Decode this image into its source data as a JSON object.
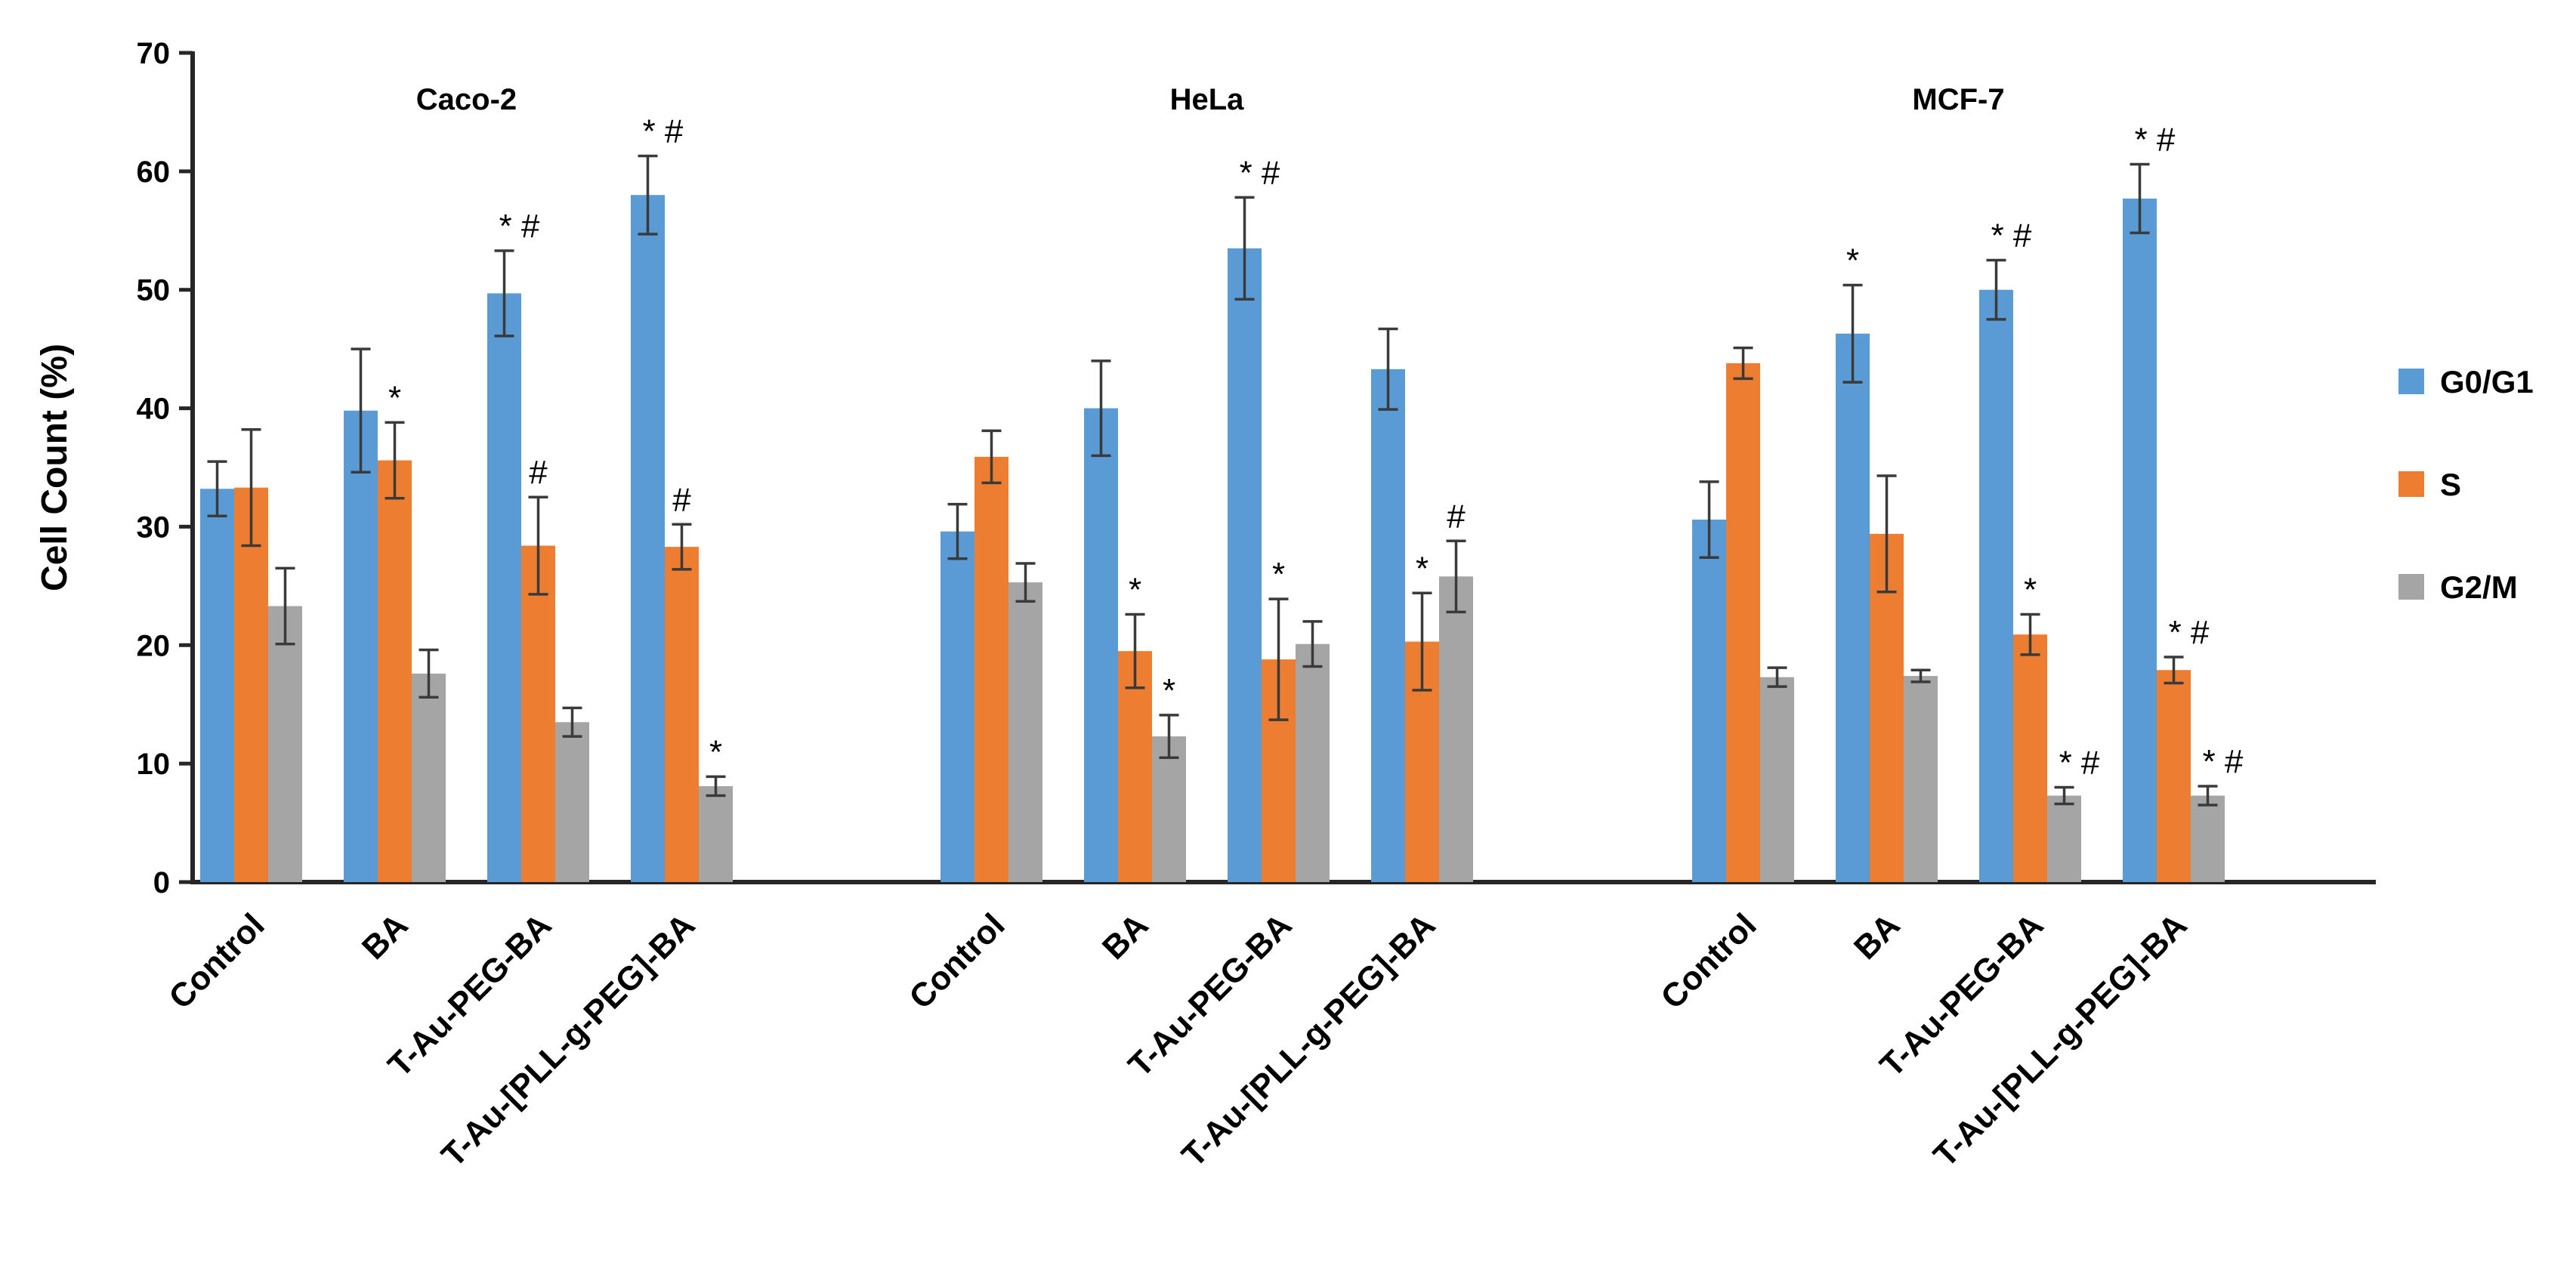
{
  "chart_data": {
    "type": "bar",
    "ylabel": "Cell Count (%)",
    "ylim": [
      0,
      70
    ],
    "yticks": [
      0,
      10,
      20,
      30,
      40,
      50,
      60,
      70
    ],
    "grid": false,
    "legend": {
      "position": "right",
      "entries": [
        {
          "name": "G0/G1",
          "color": "#5B9BD5"
        },
        {
          "name": "S",
          "color": "#ED7D31"
        },
        {
          "name": "G2/M",
          "color": "#A5A5A5"
        }
      ]
    },
    "categories": [
      "Control",
      "BA",
      "T-Au-PEG-BA",
      "T-Au-[PLL-g-PEG]-BA"
    ],
    "groups": [
      {
        "title": "Caco-2",
        "series": [
          {
            "name": "G0/G1",
            "values": [
              33.2,
              39.8,
              49.7,
              58.0
            ],
            "errors": [
              2.3,
              5.2,
              3.6,
              3.3
            ],
            "marks": [
              "",
              "",
              "* #",
              "* #"
            ]
          },
          {
            "name": "S",
            "values": [
              33.3,
              35.6,
              28.4,
              28.3
            ],
            "errors": [
              4.9,
              3.2,
              4.1,
              1.9
            ],
            "marks": [
              "",
              "*",
              "#",
              "#"
            ]
          },
          {
            "name": "G2/M",
            "values": [
              23.3,
              17.6,
              13.5,
              8.1
            ],
            "errors": [
              3.2,
              2.0,
              1.2,
              0.8
            ],
            "marks": [
              "",
              "",
              "",
              "*"
            ]
          }
        ]
      },
      {
        "title": "HeLa",
        "series": [
          {
            "name": "G0/G1",
            "values": [
              29.6,
              40.0,
              53.5,
              43.3
            ],
            "errors": [
              2.3,
              4.0,
              4.3,
              3.4
            ],
            "marks": [
              "",
              "",
              "* #",
              ""
            ]
          },
          {
            "name": "S",
            "values": [
              35.9,
              19.5,
              18.8,
              20.3
            ],
            "errors": [
              2.2,
              3.1,
              5.1,
              4.1
            ],
            "marks": [
              "",
              "*",
              "*",
              "*"
            ]
          },
          {
            "name": "G2/M",
            "values": [
              25.3,
              12.3,
              20.1,
              25.8
            ],
            "errors": [
              1.6,
              1.8,
              1.9,
              3.0
            ],
            "marks": [
              "",
              "*",
              "",
              "#"
            ]
          }
        ]
      },
      {
        "title": "MCF-7",
        "series": [
          {
            "name": "G0/G1",
            "values": [
              30.6,
              46.3,
              50.0,
              57.7
            ],
            "errors": [
              3.2,
              4.1,
              2.5,
              2.9
            ],
            "marks": [
              "",
              "*",
              "* #",
              "* #"
            ]
          },
          {
            "name": "S",
            "values": [
              43.8,
              29.4,
              20.9,
              17.9
            ],
            "errors": [
              1.3,
              4.9,
              1.7,
              1.1
            ],
            "marks": [
              "",
              "",
              "*",
              "* #"
            ]
          },
          {
            "name": "G2/M",
            "values": [
              17.3,
              17.4,
              7.3,
              7.3
            ],
            "errors": [
              0.8,
              0.5,
              0.7,
              0.8
            ],
            "marks": [
              "",
              "",
              "* #",
              "* #"
            ]
          }
        ]
      }
    ]
  }
}
